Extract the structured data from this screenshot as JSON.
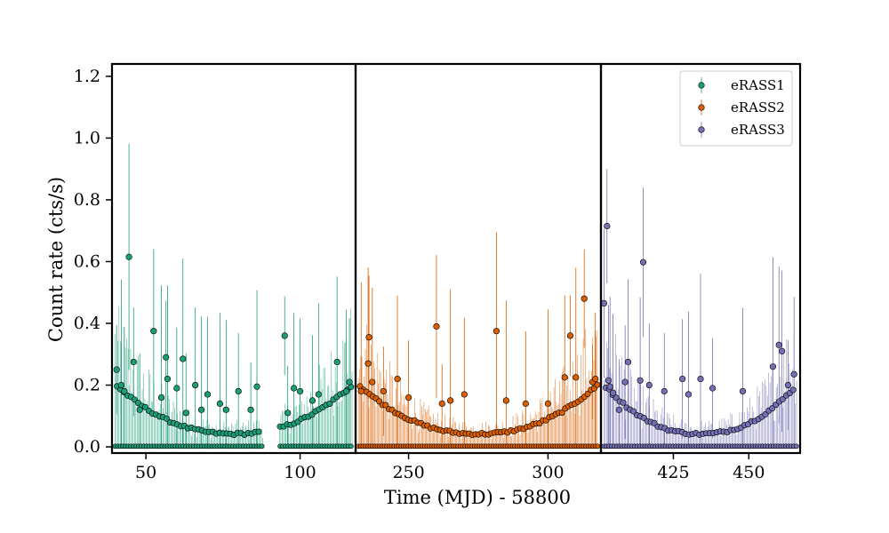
{
  "chart_data": {
    "type": "scatter",
    "title": "",
    "xlabel": "Time (MJD) - 58800",
    "ylabel": "Count rate (cts/s)",
    "ylim": [
      -0.02,
      1.24
    ],
    "yticks": [
      0.0,
      0.2,
      0.4,
      0.6,
      0.8,
      1.0,
      1.2
    ],
    "ytick_labels": [
      "0.0",
      "0.2",
      "0.4",
      "0.6",
      "0.8",
      "1.0",
      "1.2"
    ],
    "legend": {
      "placement": "top-right",
      "entries": [
        "eRASS1",
        "eRASS2",
        "eRASS3"
      ]
    },
    "grid": false,
    "panels": [
      {
        "name": "eRASS1",
        "color": "#1b9e77",
        "xlim": [
          39,
          118
        ],
        "xticks": [
          50,
          100
        ],
        "xtick_labels": [
          "50",
          "100"
        ],
        "x_start": 40,
        "x_end": 117,
        "x_gap": [
          88,
          93
        ],
        "highlighted": [
          [
            40.5,
            0.25
          ],
          [
            42,
            0.2
          ],
          [
            43,
            0.18
          ],
          [
            44.5,
            0.615
          ],
          [
            46,
            0.275
          ],
          [
            48,
            0.12
          ],
          [
            52.5,
            0.375
          ],
          [
            55,
            0.16
          ],
          [
            56.5,
            0.29
          ],
          [
            57,
            0.22
          ],
          [
            60,
            0.19
          ],
          [
            62,
            0.285
          ],
          [
            63,
            0.11
          ],
          [
            66,
            0.2
          ],
          [
            68,
            0.12
          ],
          [
            70,
            0.17
          ],
          [
            74,
            0.14
          ],
          [
            76,
            0.12
          ],
          [
            80,
            0.18
          ],
          [
            84,
            0.12
          ],
          [
            86,
            0.195
          ],
          [
            95,
            0.36
          ],
          [
            96,
            0.11
          ],
          [
            98,
            0.19
          ],
          [
            100,
            0.18
          ],
          [
            104,
            0.15
          ],
          [
            106,
            0.17
          ],
          [
            112,
            0.275
          ],
          [
            115,
            0.18
          ],
          [
            116,
            0.21
          ]
        ]
      },
      {
        "name": "eRASS2",
        "color": "#d95f02",
        "xlim": [
          231,
          319
        ],
        "xticks": [
          250,
          300
        ],
        "xtick_labels": [
          "250",
          "300"
        ],
        "x_start": 232,
        "x_end": 318,
        "x_gap": null,
        "highlighted": [
          [
            233,
            0.18
          ],
          [
            235.5,
            0.27
          ],
          [
            235.8,
            0.355
          ],
          [
            237,
            0.21
          ],
          [
            241,
            0.18
          ],
          [
            246,
            0.22
          ],
          [
            250,
            0.16
          ],
          [
            260,
            0.39
          ],
          [
            262,
            0.14
          ],
          [
            265,
            0.15
          ],
          [
            270,
            0.17
          ],
          [
            281.5,
            0.375
          ],
          [
            285,
            0.15
          ],
          [
            292,
            0.14
          ],
          [
            300,
            0.14
          ],
          [
            306,
            0.225
          ],
          [
            308,
            0.36
          ],
          [
            310,
            0.225
          ],
          [
            313,
            0.48
          ],
          [
            316,
            0.21
          ],
          [
            317,
            0.22
          ]
        ]
      },
      {
        "name": "eRASS3",
        "color": "#7570b3",
        "xlim": [
          401,
          467
        ],
        "xticks": [
          425,
          450
        ],
        "xtick_labels": [
          "425",
          "450"
        ],
        "x_start": 402,
        "x_end": 466,
        "x_gap": null,
        "highlighted": [
          [
            402,
            0.465
          ],
          [
            403,
            0.715
          ],
          [
            403.5,
            0.215
          ],
          [
            404,
            0.195
          ],
          [
            405,
            0.175
          ],
          [
            407,
            0.12
          ],
          [
            409,
            0.21
          ],
          [
            410,
            0.275
          ],
          [
            414,
            0.215
          ],
          [
            415,
            0.598
          ],
          [
            417,
            0.2
          ],
          [
            422,
            0.18
          ],
          [
            428,
            0.22
          ],
          [
            430,
            0.17
          ],
          [
            434,
            0.22
          ],
          [
            438,
            0.19
          ],
          [
            448,
            0.18
          ],
          [
            458,
            0.26
          ],
          [
            460,
            0.33
          ],
          [
            461,
            0.31
          ],
          [
            463,
            0.2
          ],
          [
            465,
            0.235
          ]
        ]
      }
    ]
  }
}
